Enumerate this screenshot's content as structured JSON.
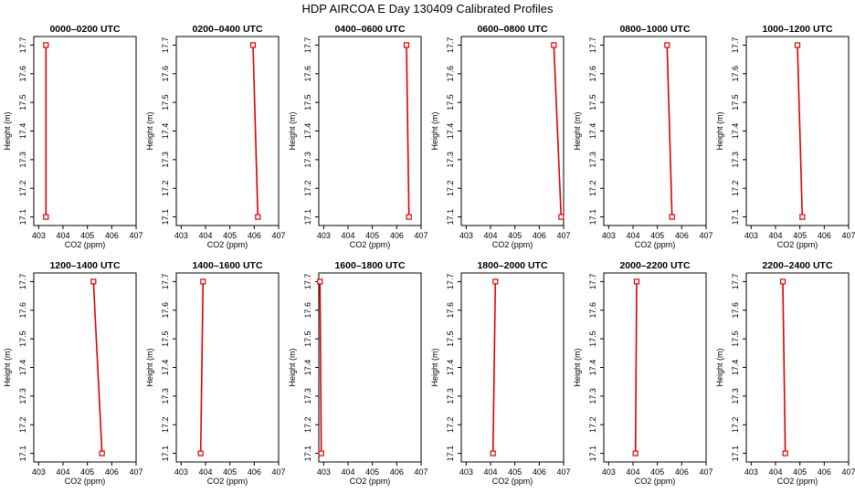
{
  "figure": {
    "title": "HDP AIRCOA E  Day 130409  Calibrated Profiles"
  },
  "colors": {
    "profile": "#dd0000",
    "axis": "#000000",
    "background": "#ffffff"
  },
  "chart_data": [
    {
      "type": "line",
      "title": "0000–0200 UTC",
      "xlabel": "CO2 (ppm)",
      "ylabel": "Height (m)",
      "xlim": [
        402.8,
        407
      ],
      "ylim": [
        17.07,
        17.73
      ],
      "xticks": [
        403,
        404,
        405,
        406,
        407
      ],
      "yticks": [
        17.1,
        17.2,
        17.3,
        17.4,
        17.5,
        17.6,
        17.7
      ],
      "grid": false,
      "series": [
        {
          "x": [
            403.3,
            403.3
          ],
          "y": [
            17.1,
            17.7
          ]
        }
      ]
    },
    {
      "type": "line",
      "title": "0200–0400 UTC",
      "xlabel": "CO2 (ppm)",
      "ylabel": "Height (m)",
      "xlim": [
        402.8,
        407
      ],
      "ylim": [
        17.07,
        17.73
      ],
      "xticks": [
        403,
        404,
        405,
        406,
        407
      ],
      "yticks": [
        17.1,
        17.2,
        17.3,
        17.4,
        17.5,
        17.6,
        17.7
      ],
      "grid": false,
      "series": [
        {
          "x": [
            406.15,
            405.95
          ],
          "y": [
            17.1,
            17.7
          ]
        }
      ]
    },
    {
      "type": "line",
      "title": "0400–0600 UTC",
      "xlabel": "CO2 (ppm)",
      "ylabel": "Height (m)",
      "xlim": [
        402.8,
        407
      ],
      "ylim": [
        17.07,
        17.73
      ],
      "xticks": [
        403,
        404,
        405,
        406,
        407
      ],
      "yticks": [
        17.1,
        17.2,
        17.3,
        17.4,
        17.5,
        17.6,
        17.7
      ],
      "grid": false,
      "series": [
        {
          "x": [
            406.5,
            406.4
          ],
          "y": [
            17.1,
            17.7
          ]
        }
      ]
    },
    {
      "type": "line",
      "title": "0600–0800 UTC",
      "xlabel": "CO2 (ppm)",
      "ylabel": "Height (m)",
      "xlim": [
        402.8,
        407
      ],
      "ylim": [
        17.07,
        17.73
      ],
      "xticks": [
        403,
        404,
        405,
        406,
        407
      ],
      "yticks": [
        17.1,
        17.2,
        17.3,
        17.4,
        17.5,
        17.6,
        17.7
      ],
      "grid": false,
      "series": [
        {
          "x": [
            406.9,
            406.6
          ],
          "y": [
            17.1,
            17.7
          ]
        }
      ]
    },
    {
      "type": "line",
      "title": "0800–1000 UTC",
      "xlabel": "CO2 (ppm)",
      "ylabel": "Height (m)",
      "xlim": [
        402.8,
        407
      ],
      "ylim": [
        17.07,
        17.73
      ],
      "xticks": [
        403,
        404,
        405,
        406,
        407
      ],
      "yticks": [
        17.1,
        17.2,
        17.3,
        17.4,
        17.5,
        17.6,
        17.7
      ],
      "grid": false,
      "series": [
        {
          "x": [
            405.6,
            405.4
          ],
          "y": [
            17.1,
            17.7
          ]
        }
      ]
    },
    {
      "type": "line",
      "title": "1000–1200 UTC",
      "xlabel": "CO2 (ppm)",
      "ylabel": "Height (m)",
      "xlim": [
        402.8,
        407
      ],
      "ylim": [
        17.07,
        17.73
      ],
      "xticks": [
        403,
        404,
        405,
        406,
        407
      ],
      "yticks": [
        17.1,
        17.2,
        17.3,
        17.4,
        17.5,
        17.6,
        17.7
      ],
      "grid": false,
      "series": [
        {
          "x": [
            405.1,
            404.9
          ],
          "y": [
            17.1,
            17.7
          ]
        }
      ]
    },
    {
      "type": "line",
      "title": "1200–1400 UTC",
      "xlabel": "CO2 (ppm)",
      "ylabel": "Height (m)",
      "xlim": [
        402.8,
        407
      ],
      "ylim": [
        17.07,
        17.73
      ],
      "xticks": [
        403,
        404,
        405,
        406,
        407
      ],
      "yticks": [
        17.1,
        17.2,
        17.3,
        17.4,
        17.5,
        17.6,
        17.7
      ],
      "grid": false,
      "series": [
        {
          "x": [
            405.6,
            405.25
          ],
          "y": [
            17.1,
            17.7
          ]
        }
      ]
    },
    {
      "type": "line",
      "title": "1400–1600 UTC",
      "xlabel": "CO2 (ppm)",
      "ylabel": "Height (m)",
      "xlim": [
        402.8,
        407
      ],
      "ylim": [
        17.07,
        17.73
      ],
      "xticks": [
        403,
        404,
        405,
        406,
        407
      ],
      "yticks": [
        17.1,
        17.2,
        17.3,
        17.4,
        17.5,
        17.6,
        17.7
      ],
      "grid": false,
      "series": [
        {
          "x": [
            403.8,
            403.9
          ],
          "y": [
            17.1,
            17.7
          ]
        }
      ]
    },
    {
      "type": "line",
      "title": "1600–1800 UTC",
      "xlabel": "CO2 (ppm)",
      "ylabel": "Height (m)",
      "xlim": [
        402.8,
        407
      ],
      "ylim": [
        17.07,
        17.73
      ],
      "xticks": [
        403,
        404,
        405,
        406,
        407
      ],
      "yticks": [
        17.1,
        17.2,
        17.3,
        17.4,
        17.5,
        17.6,
        17.7
      ],
      "grid": false,
      "series": [
        {
          "x": [
            402.9,
            402.85
          ],
          "y": [
            17.1,
            17.7
          ]
        }
      ]
    },
    {
      "type": "line",
      "title": "1800–2000 UTC",
      "xlabel": "CO2 (ppm)",
      "ylabel": "Height (m)",
      "xlim": [
        402.8,
        407
      ],
      "ylim": [
        17.07,
        17.73
      ],
      "xticks": [
        403,
        404,
        405,
        406,
        407
      ],
      "yticks": [
        17.1,
        17.2,
        17.3,
        17.4,
        17.5,
        17.6,
        17.7
      ],
      "grid": false,
      "series": [
        {
          "x": [
            404.1,
            404.2
          ],
          "y": [
            17.1,
            17.7
          ]
        }
      ]
    },
    {
      "type": "line",
      "title": "2000–2200 UTC",
      "xlabel": "CO2 (ppm)",
      "ylabel": "Height (m)",
      "xlim": [
        402.8,
        407
      ],
      "ylim": [
        17.07,
        17.73
      ],
      "xticks": [
        403,
        404,
        405,
        406,
        407
      ],
      "yticks": [
        17.1,
        17.2,
        17.3,
        17.4,
        17.5,
        17.6,
        17.7
      ],
      "grid": false,
      "series": [
        {
          "x": [
            404.1,
            404.15
          ],
          "y": [
            17.1,
            17.7
          ]
        }
      ]
    },
    {
      "type": "line",
      "title": "2200–2400 UTC",
      "xlabel": "CO2 (ppm)",
      "ylabel": "Height (m)",
      "xlim": [
        402.8,
        407
      ],
      "ylim": [
        17.07,
        17.73
      ],
      "xticks": [
        403,
        404,
        405,
        406,
        407
      ],
      "yticks": [
        17.1,
        17.2,
        17.3,
        17.4,
        17.5,
        17.6,
        17.7
      ],
      "grid": false,
      "series": [
        {
          "x": [
            404.4,
            404.3
          ],
          "y": [
            17.1,
            17.7
          ]
        }
      ]
    }
  ]
}
